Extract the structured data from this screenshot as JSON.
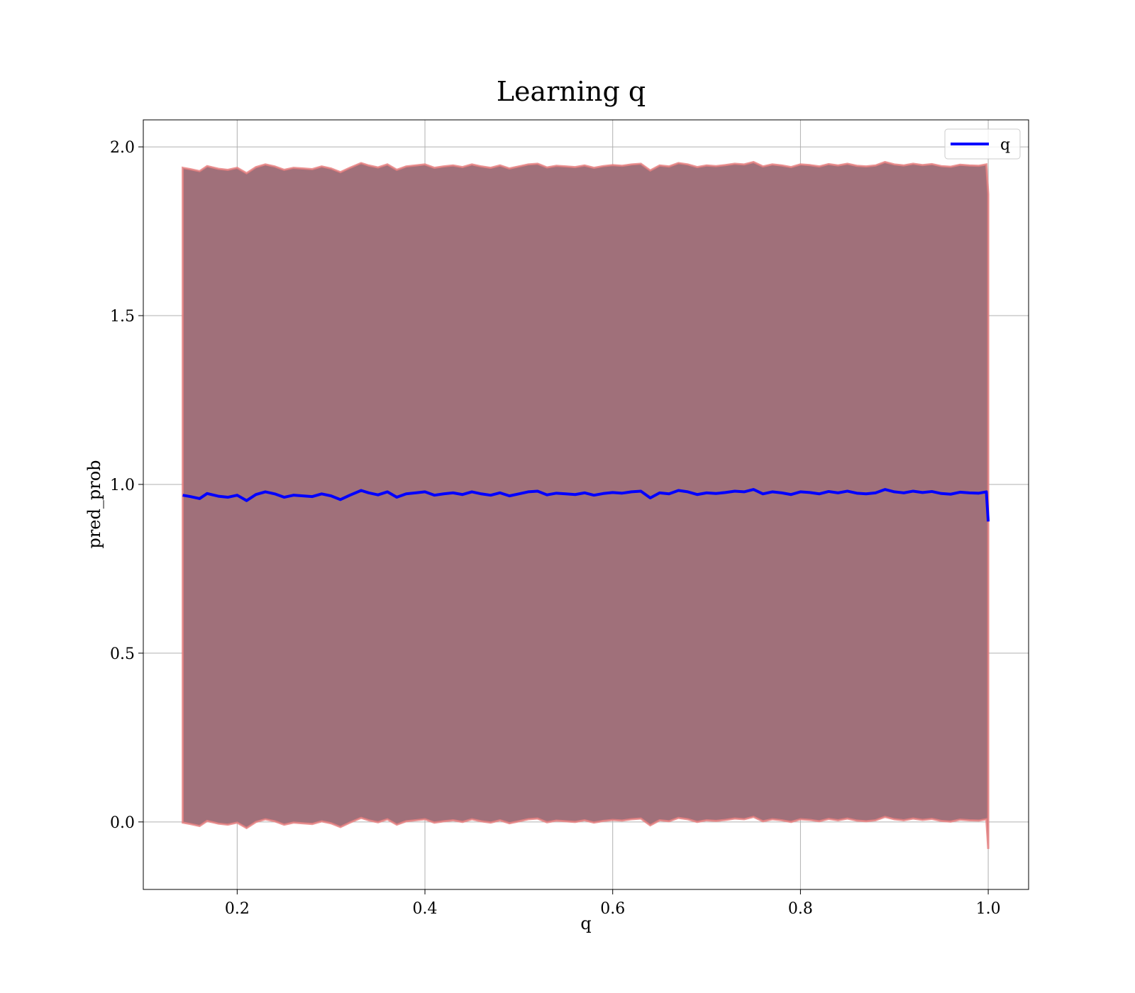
{
  "chart_data": {
    "type": "line",
    "title": "Learning q",
    "xlabel": "q",
    "ylabel": "pred_prob",
    "xlim": [
      0.1,
      1.043
    ],
    "ylim": [
      -0.2,
      2.08
    ],
    "xticks": [
      0.2,
      0.4,
      0.6,
      0.8,
      1.0
    ],
    "xtick_labels": [
      "0.2",
      "0.4",
      "0.6",
      "0.8",
      "1.0"
    ],
    "yticks": [
      0.0,
      0.5,
      1.0,
      1.5,
      2.0
    ],
    "ytick_labels": [
      "0.0",
      "0.5",
      "1.0",
      "1.5",
      "2.0"
    ],
    "grid": true,
    "legend": {
      "position": "top-right",
      "entries": [
        "q"
      ]
    },
    "series": [
      {
        "name": "q",
        "color": "#0000ff",
        "x": [
          0.142,
          0.15,
          0.16,
          0.168,
          0.18,
          0.19,
          0.2,
          0.21,
          0.22,
          0.23,
          0.24,
          0.25,
          0.26,
          0.27,
          0.28,
          0.29,
          0.3,
          0.31,
          0.32,
          0.332,
          0.34,
          0.35,
          0.36,
          0.37,
          0.38,
          0.39,
          0.4,
          0.41,
          0.42,
          0.43,
          0.44,
          0.45,
          0.46,
          0.47,
          0.48,
          0.49,
          0.5,
          0.51,
          0.52,
          0.53,
          0.54,
          0.55,
          0.56,
          0.57,
          0.58,
          0.59,
          0.6,
          0.61,
          0.62,
          0.63,
          0.64,
          0.65,
          0.66,
          0.67,
          0.68,
          0.69,
          0.7,
          0.71,
          0.72,
          0.73,
          0.74,
          0.75,
          0.76,
          0.77,
          0.78,
          0.79,
          0.8,
          0.81,
          0.82,
          0.83,
          0.84,
          0.85,
          0.86,
          0.87,
          0.88,
          0.89,
          0.9,
          0.91,
          0.92,
          0.93,
          0.94,
          0.95,
          0.96,
          0.97,
          0.98,
          0.99,
          0.998,
          1.0
        ],
        "y": [
          0.968,
          0.964,
          0.958,
          0.973,
          0.965,
          0.962,
          0.968,
          0.952,
          0.97,
          0.978,
          0.972,
          0.962,
          0.968,
          0.966,
          0.964,
          0.972,
          0.966,
          0.955,
          0.968,
          0.982,
          0.975,
          0.969,
          0.978,
          0.962,
          0.972,
          0.975,
          0.978,
          0.968,
          0.972,
          0.975,
          0.97,
          0.978,
          0.972,
          0.968,
          0.975,
          0.966,
          0.972,
          0.978,
          0.98,
          0.969,
          0.974,
          0.972,
          0.97,
          0.975,
          0.968,
          0.973,
          0.976,
          0.974,
          0.978,
          0.98,
          0.96,
          0.975,
          0.972,
          0.982,
          0.978,
          0.97,
          0.975,
          0.973,
          0.976,
          0.98,
          0.978,
          0.985,
          0.972,
          0.978,
          0.975,
          0.97,
          0.978,
          0.976,
          0.972,
          0.979,
          0.975,
          0.98,
          0.974,
          0.972,
          0.975,
          0.985,
          0.978,
          0.975,
          0.98,
          0.976,
          0.979,
          0.973,
          0.971,
          0.977,
          0.975,
          0.974,
          0.978,
          0.89
        ]
      }
    ],
    "bands": [
      {
        "color": "#a0707a",
        "lower_offset": -0.97,
        "upper_offset": 0.97
      }
    ]
  }
}
